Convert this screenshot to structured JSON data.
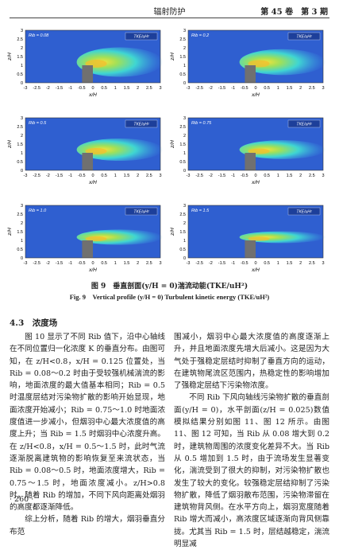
{
  "header": {
    "journal": "辐射防护",
    "issue": "第 45 卷　第 3 期"
  },
  "figure": {
    "panels": [
      {
        "label": "Rib = 0.08"
      },
      {
        "label": "Rib = 0.2"
      },
      {
        "label": "Rib = 0.5"
      },
      {
        "label": "Rib = 0.75"
      },
      {
        "label": "Rib = 1.0"
      },
      {
        "label": "Rib = 1.5"
      }
    ],
    "legend_title": "TKE/uH²",
    "x_label": "x/H",
    "y_label": "z/H",
    "x_ticks": [
      "-3",
      "-2.5",
      "-2",
      "-1.5",
      "-1",
      "-0.5",
      "0",
      "0.5",
      "1",
      "1.5",
      "2",
      "2.5",
      "3"
    ],
    "y_ticks": [
      "3",
      "2.5",
      "2",
      "1.5",
      "1",
      "0.5",
      "0"
    ],
    "caption_cn": "图 9　垂直剖面(y/H = 0)湍流动能(TKE/uH²)",
    "caption_en": "Fig. 9　Vertical profile (y/H = 0) Turbulent kinetic energy (TKE/uH²)"
  },
  "section": {
    "heading": "4.3　浓度场",
    "left": [
      "图 10 显示了不同 Rib 值下，沿中心轴线在不同位置归一化浓度 K 的垂直分布。由图可知，在 z/H<0.8，x/H = 0.125 位置处，当 Rib = 0.08～0.2 时由于受较强机械湍流的影响，地面浓度的最大值基本相同；Rib = 0.5 时温度层结对污染物扩散的影响开始显现，地面浓度开始减小；Rib = 0.75～1.0 时地面浓度值进一步减小，但烟羽中心最大浓度值的高度上升；当 Rib = 1.5 时烟羽中心浓度升高。在 z/H<0.8，x/H = 0.5～1.5 时，此时气流逐渐脱离建筑物的影响恢复至来流状态，当 Rib = 0.08～0.5 时，地面浓度增大，Rib = 0.75～1.5 时，地面浓度减小。z/H>0.8 时，随着 Rib 的增加，不同下风向距离处烟羽的高度都逐渐降低。",
      "综上分析，随着 Rib 的增大，烟羽垂直分布范"
    ],
    "right": [
      "围减小，烟羽中心最大浓度值的高度逐渐上升，并且地面浓度先增大后减小。这是因为大气处于强稳定层结时抑制了垂直方向的运动，在建筑物尾流区范围内，热稳定性的影响增加了强稳定层结下污染物浓度。",
      "不同 Rib 下风向轴线污染物扩散的垂直剖面(y/H = 0)，水平剖面(z/H = 0.025)数值模拟结果分别如图 11、图 12 所示。由图 11、图 12 可知，当 Rib 从 0.08 增大到 0.2 时，建筑物周围的浓度变化差异不大。当 Rib 从 0.5 增加到 1.5 时，由于流场发生显著变化，湍流受到了很大的抑制，对污染物扩散也发生了较大的变化。较强稳定层结抑制了污染物扩散，降低了烟羽散布范围，污染物滞留在建筑物背风侧。在水平方向上，烟羽宽度随着 Rib 增大而减小，高浓度区域逐渐向背风侧靠拢。尤其当 Rib = 1.5 时，层结越稳定，湍流明显减"
    ]
  },
  "page_number": "· 260 ·"
}
